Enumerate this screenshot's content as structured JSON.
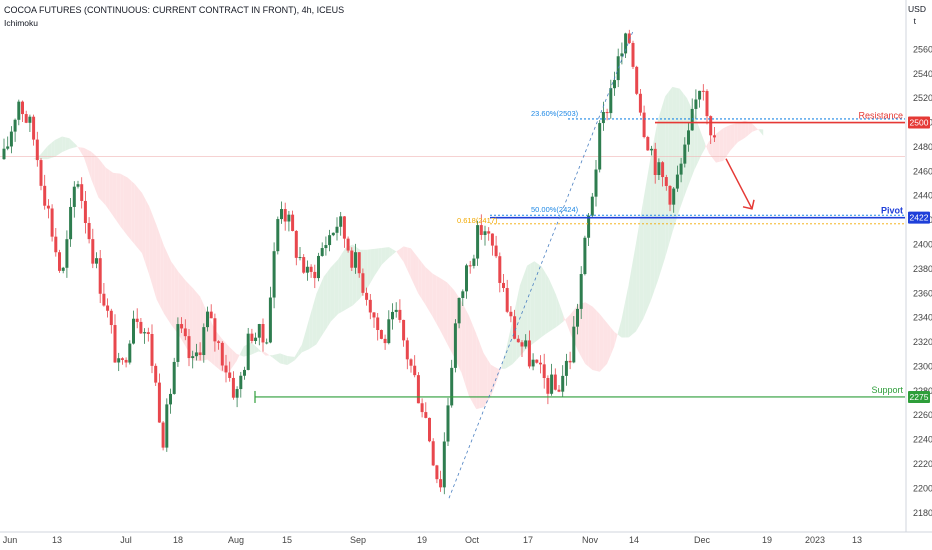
{
  "header": {
    "title": "COCOA FUTURES (CONTINUOUS: CURRENT CONTRACT IN FRONT), 4h, ICEUS",
    "indicator": "Ichimoku",
    "currency": "USD",
    "currency_sub": "t"
  },
  "colors": {
    "up": "#2e7d4f",
    "down": "#e8474d",
    "resistance": "#e53935",
    "pivot": "#1e3fd9",
    "support": "#2e9e3a",
    "cloud_bull": "#dff0e4",
    "cloud_bear": "#fde2e4",
    "fib": "#1e88e5",
    "fib618": "#f2a900"
  },
  "chart_data": {
    "type": "candlestick",
    "timeframe": "4h",
    "symbol": "COCOA FUTURES (CONTINUOUS: CURRENT CONTRACT IN FRONT)",
    "ylim": [
      2170,
      2580
    ],
    "y_ticks": [
      2180,
      2200,
      2220,
      2240,
      2260,
      2280,
      2300,
      2320,
      2340,
      2360,
      2380,
      2400,
      2420,
      2440,
      2460,
      2480,
      2500,
      2520,
      2540,
      2560
    ],
    "x_ticks": [
      "Jun",
      "13",
      "Jul",
      "18",
      "Aug",
      "15",
      "Sep",
      "19",
      "Oct",
      "17",
      "Nov",
      "14",
      "Dec",
      "19",
      "2023",
      "13"
    ],
    "price_path": [
      {
        "x": "Jun",
        "close": 2470
      },
      {
        "x": "Jun",
        "close": 2520
      },
      {
        "x": "13",
        "close": 2490
      },
      {
        "x": "13",
        "close": 2430
      },
      {
        "x": "13",
        "close": 2370
      },
      {
        "x": "13",
        "close": 2460
      },
      {
        "x": "13",
        "close": 2400
      },
      {
        "x": "Jul",
        "close": 2350
      },
      {
        "x": "Jul",
        "close": 2290
      },
      {
        "x": "Jul",
        "close": 2350
      },
      {
        "x": "Jul",
        "close": 2320
      },
      {
        "x": "18",
        "close": 2240
      },
      {
        "x": "18",
        "close": 2330
      },
      {
        "x": "18",
        "close": 2300
      },
      {
        "x": "18",
        "close": 2340
      },
      {
        "x": "Aug",
        "close": 2310
      },
      {
        "x": "Aug",
        "close": 2275
      },
      {
        "x": "Aug",
        "close": 2330
      },
      {
        "x": "Aug",
        "close": 2320
      },
      {
        "x": "15",
        "close": 2440
      },
      {
        "x": "15",
        "close": 2400
      },
      {
        "x": "15",
        "close": 2370
      },
      {
        "x": "15",
        "close": 2400
      },
      {
        "x": "Sep",
        "close": 2420
      },
      {
        "x": "Sep",
        "close": 2390
      },
      {
        "x": "Sep",
        "close": 2360
      },
      {
        "x": "Sep",
        "close": 2320
      },
      {
        "x": "19",
        "close": 2340
      },
      {
        "x": "19",
        "close": 2300
      },
      {
        "x": "19",
        "close": 2260
      },
      {
        "x": "19",
        "close": 2200
      },
      {
        "x": "Oct",
        "close": 2330
      },
      {
        "x": "Oct",
        "close": 2390
      },
      {
        "x": "Oct",
        "close": 2417
      },
      {
        "x": "Oct",
        "close": 2380
      },
      {
        "x": "17",
        "close": 2330
      },
      {
        "x": "17",
        "close": 2310
      },
      {
        "x": "17",
        "close": 2290
      },
      {
        "x": "17",
        "close": 2280
      },
      {
        "x": "Nov",
        "close": 2310
      },
      {
        "x": "Nov",
        "close": 2400
      },
      {
        "x": "Nov",
        "close": 2490
      },
      {
        "x": "14",
        "close": 2540
      },
      {
        "x": "14",
        "close": 2570
      },
      {
        "x": "14",
        "close": 2500
      },
      {
        "x": "14",
        "close": 2460
      },
      {
        "x": "Dec",
        "close": 2440
      },
      {
        "x": "Dec",
        "close": 2480
      },
      {
        "x": "Dec",
        "close": 2540
      },
      {
        "x": "Dec",
        "close": 2475
      }
    ],
    "levels": [
      {
        "name": "Resistance",
        "value": 2500
      },
      {
        "name": "Pivot",
        "value": 2422
      },
      {
        "name": "Support",
        "value": 2275
      }
    ],
    "fib_labels": [
      {
        "label": "23.60%(2503)",
        "value": 2503
      },
      {
        "label": "50.00%(2424)",
        "value": 2424
      },
      {
        "label": "0.618(2417)",
        "value": 2417
      }
    ],
    "reference_line": 2472,
    "arrow_forecast": {
      "from": 2472,
      "to": 2426
    },
    "grid": false,
    "legend": "none"
  }
}
